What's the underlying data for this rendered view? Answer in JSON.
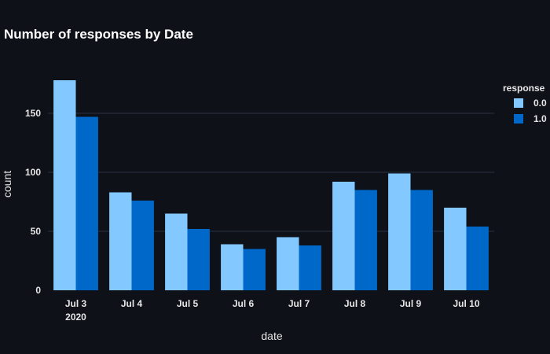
{
  "chart_data": {
    "type": "bar",
    "title": "Number of responses by Date",
    "xlabel": "date",
    "ylabel": "count",
    "categories": [
      "Jul 3",
      "Jul 4",
      "Jul 5",
      "Jul 6",
      "Jul 7",
      "Jul 8",
      "Jul 9",
      "Jul 10"
    ],
    "category_sublabels": [
      "2020",
      "",
      "",
      "",
      "",
      "",
      "",
      ""
    ],
    "series": [
      {
        "name": "0.0",
        "color": "#83c9ff",
        "values": [
          178,
          83,
          65,
          39,
          45,
          92,
          99,
          70
        ]
      },
      {
        "name": "1.0",
        "color": "#0068c9",
        "values": [
          147,
          76,
          52,
          35,
          38,
          85,
          85,
          54
        ]
      }
    ],
    "ylim": [
      0,
      190
    ],
    "yticks": [
      0,
      50,
      100,
      150
    ],
    "grid": true,
    "legend": {
      "title": "response",
      "placement": "right"
    }
  }
}
